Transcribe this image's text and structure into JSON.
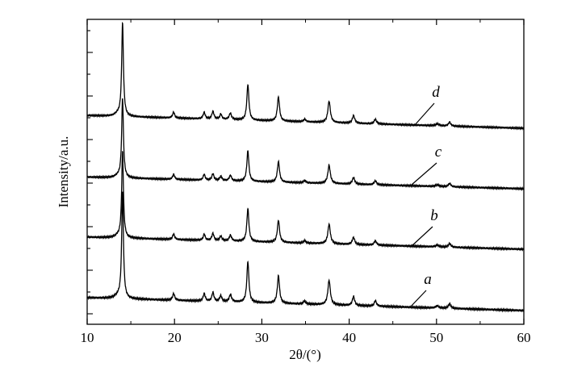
{
  "chart_data": {
    "type": "line",
    "xlabel": "2θ/(°)",
    "ylabel": "Intensity/a.u.",
    "xlim": [
      10,
      60
    ],
    "xticks": [
      10,
      20,
      30,
      40,
      50,
      60
    ],
    "grid": false,
    "legend": "none",
    "line_color": "#000000",
    "peaks": [
      {
        "x": 13.5,
        "h": 0.06,
        "w": 0.4
      },
      {
        "x": 14.05,
        "h": 2.4,
        "w": 0.12
      },
      {
        "x": 19.9,
        "h": 0.15,
        "w": 0.14
      },
      {
        "x": 23.4,
        "h": 0.17,
        "w": 0.14
      },
      {
        "x": 24.4,
        "h": 0.2,
        "w": 0.14
      },
      {
        "x": 25.3,
        "h": 0.13,
        "w": 0.14
      },
      {
        "x": 26.4,
        "h": 0.16,
        "w": 0.16
      },
      {
        "x": 28.4,
        "h": 0.92,
        "w": 0.14
      },
      {
        "x": 31.9,
        "h": 0.62,
        "w": 0.15
      },
      {
        "x": 34.9,
        "h": 0.07,
        "w": 0.15
      },
      {
        "x": 37.7,
        "h": 0.55,
        "w": 0.17
      },
      {
        "x": 40.5,
        "h": 0.2,
        "w": 0.16
      },
      {
        "x": 43.0,
        "h": 0.12,
        "w": 0.16
      },
      {
        "x": 50.1,
        "h": 0.05,
        "w": 0.2
      },
      {
        "x": 51.5,
        "h": 0.1,
        "w": 0.17
      }
    ],
    "series": [
      {
        "name": "a",
        "start": 0.29,
        "end": 0.0,
        "scale": 1.0
      },
      {
        "name": "b",
        "start": 0.29,
        "end": 0.0,
        "scale": 0.85
      },
      {
        "name": "c",
        "start": 0.29,
        "end": 0.0,
        "scale": 0.82
      },
      {
        "name": "d",
        "start": 0.33,
        "end": 0.0,
        "scale": 1.0
      }
    ],
    "labels": [
      "a",
      "b",
      "c",
      "d"
    ]
  }
}
